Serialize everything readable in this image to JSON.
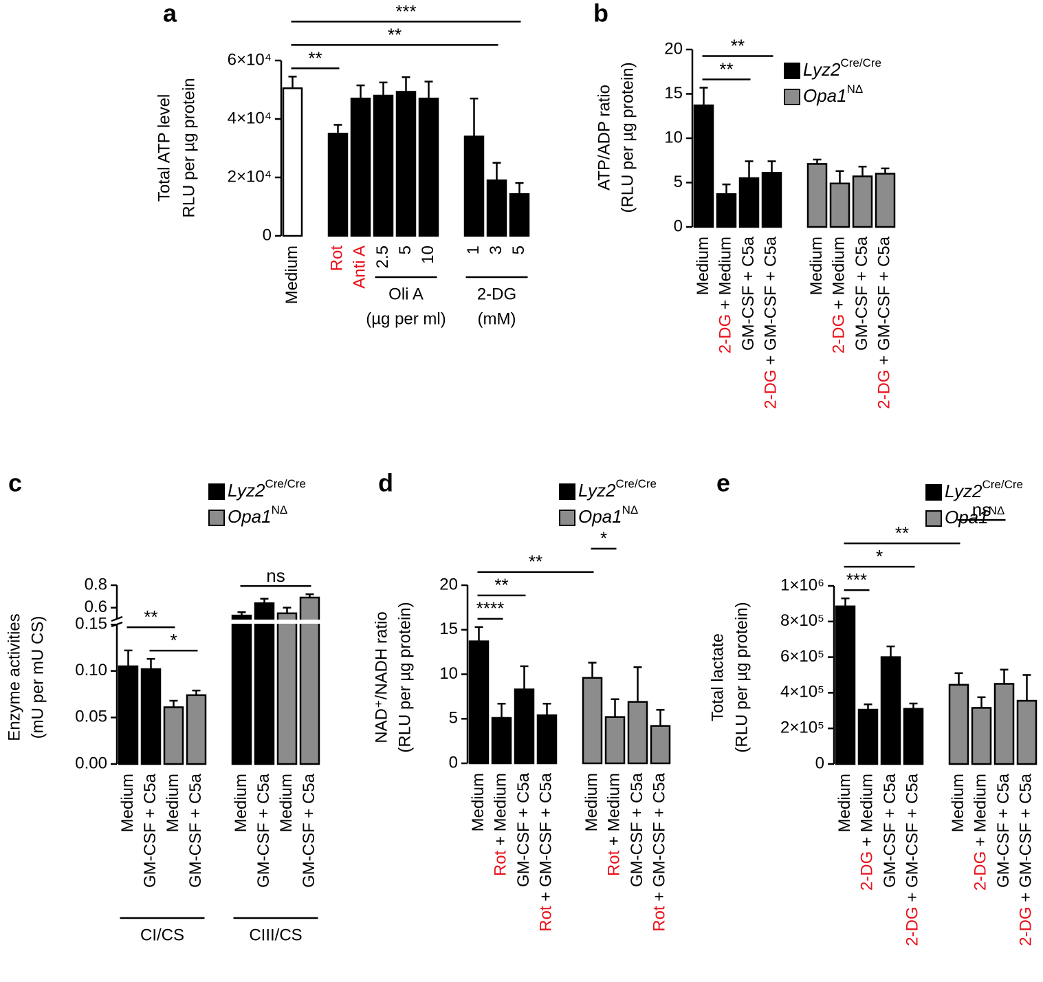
{
  "chart_data": [
    {
      "type": "bar",
      "panel_label": "a",
      "ylabel": [
        "Total ATP level",
        "RLU per µg protein"
      ],
      "categories": [
        "Medium",
        null,
        [
          {
            "text": "Rot",
            "color": "#e8101a"
          }
        ],
        [
          {
            "text": "Anti A",
            "color": "#e8101a"
          }
        ],
        "2.5",
        "5",
        "10",
        null,
        "1",
        "3",
        "5"
      ],
      "values": [
        50500,
        null,
        35000,
        47000,
        48000,
        49300,
        47000,
        null,
        34000,
        19000,
        14300
      ],
      "errors": [
        4000,
        null,
        3000,
        4500,
        4500,
        5000,
        5800,
        null,
        13000,
        6000,
        3800
      ],
      "colors": [
        "#ffffff",
        null,
        "#000000",
        "#000000",
        "#000000",
        "#000000",
        "#000000",
        null,
        "#000000",
        "#000000",
        "#000000"
      ],
      "ylim": [
        0,
        60000
      ],
      "yticks": [
        0,
        {
          "value": 20000,
          "label": "2×10⁴"
        },
        {
          "value": 40000,
          "label": "4×10⁴"
        },
        {
          "value": 60000,
          "label": "6×10⁴"
        }
      ],
      "groups": [
        {
          "label": "Oli A",
          "label_color": "#e8101a",
          "sublabel": "(µg per ml)",
          "from": 4,
          "to": 6
        },
        {
          "label": "2-DG",
          "label_color": "#e8101a",
          "sublabel": "(mM)",
          "from": 8,
          "to": 10
        }
      ],
      "brackets": [
        {
          "from": 0,
          "to": 2,
          "label": "**"
        },
        {
          "from": 0,
          "to": 9,
          "label": "**"
        },
        {
          "from": 0,
          "to": 10,
          "label": "***"
        }
      ]
    },
    {
      "type": "bar",
      "panel_label": "b",
      "ylabel": [
        "ATP/ADP ratio",
        "(RLU per µg protein)"
      ],
      "categories": [
        "Medium",
        [
          {
            "text": "2-DG",
            "color": "#e8101a"
          },
          {
            "text": " + Medium",
            "color": "#000000"
          }
        ],
        "GM-CSF + C5a",
        [
          {
            "text": "2-DG",
            "color": "#e8101a"
          },
          {
            "text": " + GM-CSF + C5a",
            "color": "#000000"
          }
        ],
        null,
        "Medium",
        [
          {
            "text": "2-DG",
            "color": "#e8101a"
          },
          {
            "text": " + Medium",
            "color": "#000000"
          }
        ],
        "GM-CSF + C5a",
        [
          {
            "text": "2-DG",
            "color": "#e8101a"
          },
          {
            "text": " + GM-CSF + C5a",
            "color": "#000000"
          }
        ]
      ],
      "series": [
        {
          "name": "Lyz2",
          "name_sup": "Cre/Cre",
          "color": "#000000",
          "values": [
            13.7,
            3.7,
            5.5,
            6.1,
            null,
            null,
            null,
            null,
            null
          ],
          "errors": [
            2.0,
            1.1,
            1.9,
            1.3,
            null,
            null,
            null,
            null,
            null
          ]
        },
        {
          "name": "Opa1",
          "name_sup": "NΔ",
          "color": "#8c8c8c",
          "values": [
            null,
            null,
            null,
            null,
            null,
            7.1,
            4.9,
            5.7,
            6.0
          ],
          "errors": [
            null,
            null,
            null,
            null,
            null,
            0.5,
            1.4,
            1.1,
            0.6
          ]
        }
      ],
      "ylim": [
        0,
        20
      ],
      "yticks": [
        0,
        5,
        10,
        15,
        20
      ],
      "legend": "upper right",
      "brackets": [
        {
          "from": 0,
          "to": 2,
          "label": "**"
        },
        {
          "from": 0,
          "to": 3,
          "label": "**"
        }
      ]
    },
    {
      "type": "bar",
      "panel_label": "c",
      "ylabel": [
        "Enzyme activities",
        "(mU per mU CS)"
      ],
      "categories": [
        "Medium",
        "GM-CSF + C5a",
        "Medium",
        "GM-CSF + C5a",
        null,
        "Medium",
        "GM-CSF + C5a",
        "Medium",
        "GM-CSF + C5a"
      ],
      "series": [
        {
          "name": "Lyz2",
          "name_sup": "Cre/Cre",
          "color": "#000000",
          "values": [
            0.105,
            0.102,
            null,
            null,
            null,
            0.53,
            0.64,
            null,
            null
          ],
          "errors": [
            0.017,
            0.011,
            null,
            null,
            null,
            0.03,
            0.04,
            null,
            null
          ]
        },
        {
          "name": "Opa1",
          "name_sup": "NΔ",
          "color": "#8c8c8c",
          "values": [
            null,
            null,
            0.061,
            0.074,
            null,
            null,
            null,
            0.55,
            0.69
          ],
          "errors": [
            null,
            null,
            0.007,
            0.005,
            null,
            null,
            null,
            0.05,
            0.03
          ]
        }
      ],
      "ylim": [
        0,
        0.8
      ],
      "ybreak": [
        0.15,
        0.5
      ],
      "yticks": [
        {
          "value": 0,
          "label": "0.00"
        },
        {
          "value": 0.05,
          "label": "0.05"
        },
        {
          "value": 0.1,
          "label": "0.10"
        },
        {
          "value": 0.15,
          "label": "0.15"
        },
        0.6,
        0.8
      ],
      "legend": "top",
      "groups": [
        {
          "label": "CI/CS",
          "from": 0,
          "to": 3
        },
        {
          "label": "CIII/CS",
          "from": 5,
          "to": 8
        }
      ],
      "brackets": [
        {
          "from": 1,
          "to": 3,
          "label": "*"
        },
        {
          "from": 0,
          "to": 2,
          "label": "**"
        },
        {
          "from": 5,
          "to": 8,
          "label": "ns"
        }
      ]
    },
    {
      "type": "bar",
      "panel_label": "d",
      "ylabel": [
        "NAD⁺/NADH ratio",
        "(RLU per µg protein)"
      ],
      "categories": [
        "Medium",
        [
          {
            "text": "Rot",
            "color": "#e8101a"
          },
          {
            "text": " + Medium",
            "color": "#000000"
          }
        ],
        "GM-CSF + C5a",
        [
          {
            "text": "Rot",
            "color": "#e8101a"
          },
          {
            "text": " + GM-CSF + C5a",
            "color": "#000000"
          }
        ],
        null,
        "Medium",
        [
          {
            "text": "Rot",
            "color": "#e8101a"
          },
          {
            "text": " + Medium",
            "color": "#000000"
          }
        ],
        "GM-CSF + C5a",
        [
          {
            "text": "Rot",
            "color": "#e8101a"
          },
          {
            "text": " + GM-CSF + C5a",
            "color": "#000000"
          }
        ]
      ],
      "series": [
        {
          "name": "Lyz2",
          "name_sup": "Cre/Cre",
          "color": "#000000",
          "values": [
            13.7,
            5.1,
            8.3,
            5.4,
            null,
            null,
            null,
            null,
            null
          ],
          "errors": [
            1.6,
            1.6,
            2.6,
            1.3,
            null,
            null,
            null,
            null,
            null
          ]
        },
        {
          "name": "Opa1",
          "name_sup": "NΔ",
          "color": "#8c8c8c",
          "values": [
            null,
            null,
            null,
            null,
            null,
            9.6,
            5.2,
            6.9,
            4.2
          ],
          "errors": [
            null,
            null,
            null,
            null,
            null,
            1.7,
            2.0,
            3.9,
            1.8
          ]
        }
      ],
      "ylim": [
        0,
        20
      ],
      "yticks": [
        0,
        5,
        10,
        15,
        20
      ],
      "legend": "top",
      "brackets": [
        {
          "from": 0,
          "to": 1,
          "label": "****"
        },
        {
          "from": 0,
          "to": 2,
          "label": "**"
        },
        {
          "from": 0,
          "to": 5,
          "label": "**"
        },
        {
          "from": 5,
          "to": 6,
          "label": "*"
        }
      ]
    },
    {
      "type": "bar",
      "panel_label": "e",
      "ylabel": [
        "Total lactate",
        "(RLU per µg protein)"
      ],
      "categories": [
        "Medium",
        [
          {
            "text": "2-DG",
            "color": "#e8101a"
          },
          {
            "text": " + Medium",
            "color": "#000000"
          }
        ],
        "GM-CSF + C5a",
        [
          {
            "text": "2-DG",
            "color": "#e8101a"
          },
          {
            "text": " + GM-CSF + C5a",
            "color": "#000000"
          }
        ],
        null,
        "Medium",
        [
          {
            "text": "2-DG",
            "color": "#e8101a"
          },
          {
            "text": " + Medium",
            "color": "#000000"
          }
        ],
        "GM-CSF + C5a",
        [
          {
            "text": "2-DG",
            "color": "#e8101a"
          },
          {
            "text": " + GM-CSF + C5a",
            "color": "#000000"
          }
        ]
      ],
      "series": [
        {
          "name": "Lyz2",
          "name_sup": "Cre/Cre",
          "color": "#000000",
          "values": [
            885000,
            305000,
            600000,
            310000,
            null,
            null,
            null,
            null,
            null
          ],
          "errors": [
            45000,
            30000,
            60000,
            30000,
            null,
            null,
            null,
            null,
            null
          ]
        },
        {
          "name": "Opa1",
          "name_sup": "NΔ",
          "color": "#8c8c8c",
          "values": [
            null,
            null,
            null,
            null,
            null,
            445000,
            315000,
            450000,
            355000
          ],
          "errors": [
            null,
            null,
            null,
            null,
            null,
            65000,
            60000,
            80000,
            145000
          ]
        }
      ],
      "ylim": [
        0,
        1000000
      ],
      "yticks": [
        0,
        {
          "value": 200000,
          "label": "2×10⁵"
        },
        {
          "value": 400000,
          "label": "4×10⁵"
        },
        {
          "value": 600000,
          "label": "6×10⁵"
        },
        {
          "value": 800000,
          "label": "8×10⁵"
        },
        {
          "value": 1000000,
          "label": "1×10⁶"
        }
      ],
      "legend": "top",
      "brackets": [
        {
          "from": 0,
          "to": 1,
          "label": "***"
        },
        {
          "from": 0,
          "to": 3,
          "label": "*"
        },
        {
          "from": 0,
          "to": 5,
          "label": "**"
        },
        {
          "from": 5,
          "to": 7,
          "label": "ns"
        }
      ]
    }
  ]
}
